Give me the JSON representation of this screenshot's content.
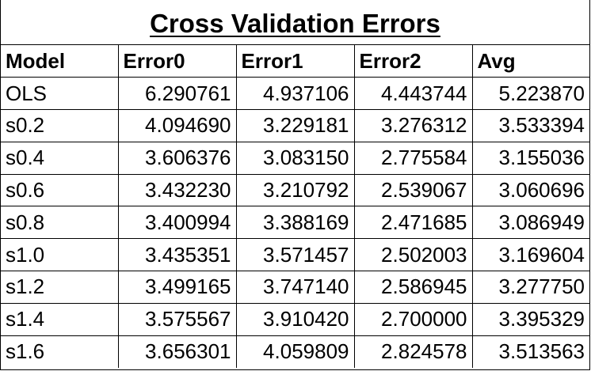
{
  "title": "Cross Validation Errors",
  "columns": [
    "Model",
    "Error0",
    "Error1",
    "Error2",
    "Avg"
  ],
  "rows": [
    [
      "OLS",
      "6.290761",
      "4.937106",
      "4.443744",
      "5.223870"
    ],
    [
      "s0.2",
      "4.094690",
      "3.229181",
      "3.276312",
      "3.533394"
    ],
    [
      "s0.4",
      "3.606376",
      "3.083150",
      "2.775584",
      "3.155036"
    ],
    [
      "s0.6",
      "3.432230",
      "3.210792",
      "2.539067",
      "3.060696"
    ],
    [
      "s0.8",
      "3.400994",
      "3.388169",
      "2.471685",
      "3.086949"
    ],
    [
      "s1.0",
      "3.435351",
      "3.571457",
      "2.502003",
      "3.169604"
    ],
    [
      "s1.2",
      "3.499165",
      "3.747140",
      "2.586945",
      "3.277750"
    ],
    [
      "s1.4",
      "3.575567",
      "3.910420",
      "2.700000",
      "3.395329"
    ],
    [
      "s1.6",
      "3.656301",
      "4.059809",
      "2.824578",
      "3.513563"
    ]
  ]
}
